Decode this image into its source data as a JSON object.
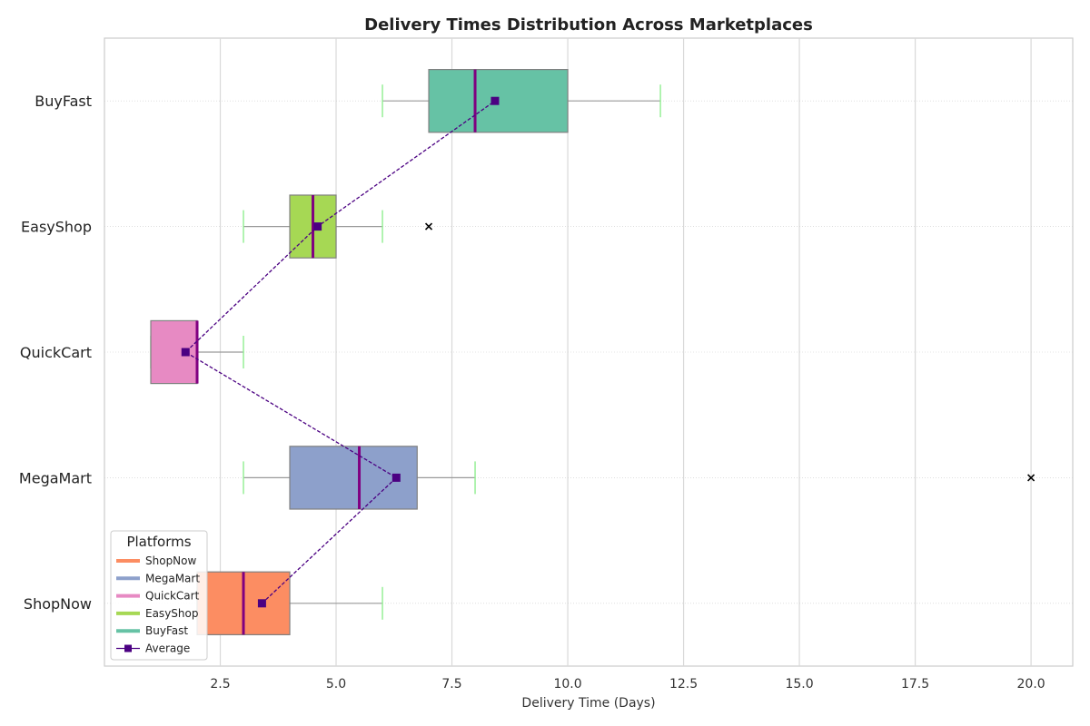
{
  "chart_data": {
    "type": "boxplot",
    "orientation": "horizontal",
    "title": "Delivery Times Distribution Across Marketplaces",
    "xlabel": "Delivery Time (Days)",
    "ylabel": "",
    "xlim": [
      0.0,
      20.9
    ],
    "xticks": [
      2.5,
      5.0,
      7.5,
      10.0,
      12.5,
      15.0,
      17.5,
      20.0
    ],
    "xtick_labels": [
      "2.5",
      "5.0",
      "7.5",
      "10.0",
      "12.5",
      "15.0",
      "17.5",
      "20.0"
    ],
    "grid": true,
    "legend_title": "Platforms",
    "legend_position": "lower-left",
    "average_label": "Average",
    "average_color": "#4B0082",
    "median_color": "#800080",
    "whisker_cap_color": "#90EE90",
    "categories": [
      "ShopNow",
      "MegaMart",
      "QuickCart",
      "EasyShop",
      "BuyFast"
    ],
    "series": [
      {
        "name": "ShopNow",
        "color": "#FC8D62",
        "whisker_low": 2,
        "q1": 2,
        "median": 3,
        "q3": 4,
        "whisker_high": 6,
        "mean": 3.4,
        "outliers": []
      },
      {
        "name": "MegaMart",
        "color": "#8DA0CB",
        "whisker_low": 3,
        "q1": 4,
        "median": 5.5,
        "q3": 6.75,
        "whisker_high": 8,
        "mean": 6.3,
        "outliers": [
          20
        ]
      },
      {
        "name": "QuickCart",
        "color": "#E78AC3",
        "whisker_low": 1,
        "q1": 1,
        "median": 2,
        "q3": 2,
        "whisker_high": 3,
        "mean": 1.75,
        "outliers": []
      },
      {
        "name": "EasyShop",
        "color": "#A6D854",
        "whisker_low": 3,
        "q1": 4,
        "median": 4.5,
        "q3": 5,
        "whisker_high": 6,
        "mean": 4.6,
        "outliers": [
          7
        ]
      },
      {
        "name": "BuyFast",
        "color": "#66C2A5",
        "whisker_low": 6,
        "q1": 7,
        "median": 8,
        "q3": 10,
        "whisker_high": 12,
        "mean": 8.43,
        "outliers": []
      }
    ]
  }
}
